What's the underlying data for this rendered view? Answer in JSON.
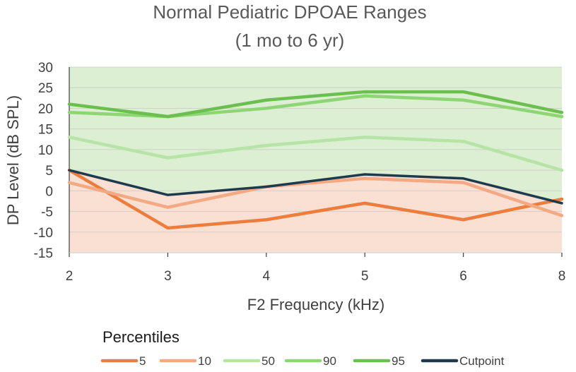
{
  "chart_data": {
    "type": "line",
    "title": [
      "Normal Pediatric DPOAE Ranges",
      "(1 mo to 6 yr)"
    ],
    "xlabel": "F2 Frequency (kHz)",
    "ylabel": "DP Level (dB SPL)",
    "x": [
      2,
      3,
      4,
      5,
      6,
      8
    ],
    "x_tick_labels": [
      "2",
      "3",
      "4",
      "5",
      "6",
      "8"
    ],
    "ylim": [
      -15,
      30
    ],
    "y_ticks": [
      30,
      25,
      20,
      15,
      10,
      5,
      0,
      -5,
      -10,
      -15
    ],
    "grid": "horizontal",
    "legend_title": "Percentiles",
    "legend_position": "bottom",
    "regions": [
      {
        "fill": "#dcefd3",
        "from": "Cutpoint",
        "to": "top"
      },
      {
        "fill": "#fadfd3",
        "from": "bottom",
        "to": "Cutpoint"
      }
    ],
    "series": [
      {
        "name": "5",
        "color": "#ed7d3c",
        "values": [
          5,
          -9,
          -7,
          -3,
          -7,
          -2
        ]
      },
      {
        "name": "10",
        "color": "#f2aa84",
        "values": [
          2,
          -4,
          1,
          3,
          2,
          -6
        ]
      },
      {
        "name": "50",
        "color": "#b6e3a6",
        "values": [
          13,
          8,
          11,
          13,
          12,
          5
        ]
      },
      {
        "name": "90",
        "color": "#8ed573",
        "values": [
          19,
          18,
          20,
          23,
          22,
          18
        ]
      },
      {
        "name": "95",
        "color": "#6bbf4e",
        "values": [
          21,
          18,
          22,
          24,
          24,
          19
        ]
      },
      {
        "name": "Cutpoint",
        "color": "#1e3a4c",
        "values": [
          5,
          -1,
          1,
          4,
          3,
          -3
        ]
      }
    ]
  }
}
